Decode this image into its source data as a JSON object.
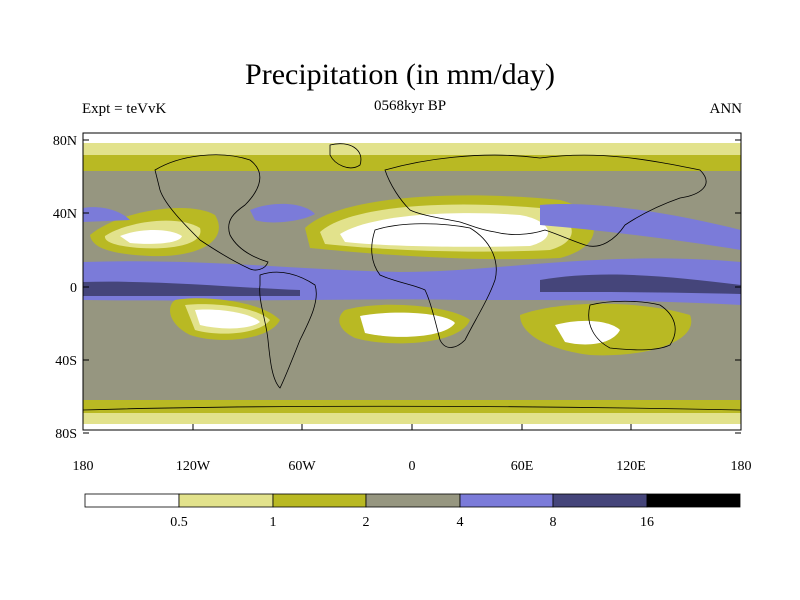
{
  "title": "Precipitation (in mm/day)",
  "subtitle": "0568kyr BP",
  "left_label": "Expt = teVvK",
  "right_label": "ANN",
  "map": {
    "lat_ticks": [
      "80N",
      "40N",
      "0",
      "40S",
      "80S"
    ],
    "lon_ticks": [
      "180",
      "120W",
      "60W",
      "0",
      "60E",
      "120E",
      "180"
    ],
    "projection": "cylindrical equidistant",
    "coastlines": true
  },
  "colorbar": {
    "levels": [
      "0.5",
      "1",
      "2",
      "4",
      "8",
      "16"
    ],
    "colors": [
      "#ffffff",
      "#e2e28c",
      "#b9b923",
      "#969680",
      "#7b7bd9",
      "#45457a",
      "#000000"
    ]
  }
}
